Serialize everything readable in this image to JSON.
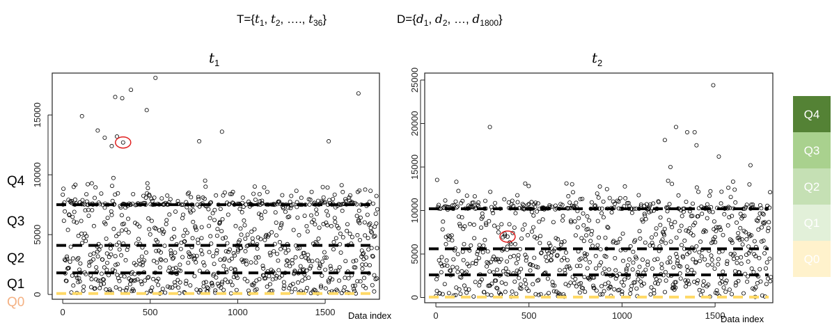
{
  "header": {
    "t_set_prefix": "T={",
    "t_set_items": [
      "t",
      "1",
      ", ",
      "t",
      "2",
      ", …., ",
      "t",
      "36",
      "}"
    ],
    "d_set_prefix": "D={",
    "d_set_items": [
      "d",
      "1",
      ", ",
      "d",
      "2",
      ", …, ",
      "d",
      "1800",
      "}"
    ]
  },
  "quartile_labels": [
    "Q4",
    "Q3",
    "Q2",
    "Q1",
    "Q0"
  ],
  "legend": {
    "items": [
      {
        "label": "Q4",
        "color": "#548235"
      },
      {
        "label": "Q3",
        "color": "#a9d18e"
      },
      {
        "label": "Q2",
        "color": "#c5e0b4"
      },
      {
        "label": "Q1",
        "color": "#e2f0d9"
      },
      {
        "label": "Q0",
        "color": "#fff2cc"
      }
    ]
  },
  "colors": {
    "q0_line": "#ffd966",
    "q0_label": "#f4b183",
    "highlight_circle": "#e02020",
    "points": "#000000"
  },
  "chart_data": [
    {
      "type": "scatter",
      "title_var": "t",
      "title_sub": "1",
      "xlabel": "Data index",
      "ylabel": "",
      "xlim": [
        -60,
        1810
      ],
      "ylim": [
        -400,
        18500
      ],
      "xticks": [
        0,
        500,
        1000,
        1500
      ],
      "yticks": [
        0,
        5000,
        10000,
        15000
      ],
      "n_points": 1800,
      "quantile_lines": [
        {
          "name": "Q0",
          "y": 80
        },
        {
          "name": "Q1",
          "y": 1800
        },
        {
          "name": "Q2",
          "y": 4100
        },
        {
          "name": "Q3",
          "y": 7500
        }
      ],
      "highlight": {
        "x": 345,
        "y": 12700
      },
      "notable_points": [
        [
          530,
          18100
        ],
        [
          390,
          17100
        ],
        [
          1690,
          16800
        ],
        [
          300,
          16500
        ],
        [
          340,
          16400
        ],
        [
          480,
          15400
        ],
        [
          110,
          14900
        ],
        [
          200,
          13700
        ],
        [
          310,
          13200
        ],
        [
          240,
          13100
        ],
        [
          1520,
          12800
        ],
        [
          910,
          13600
        ],
        [
          780,
          12800
        ],
        [
          280,
          12400
        ]
      ]
    },
    {
      "type": "scatter",
      "title_var": "t",
      "title_sub": "2",
      "xlabel": "Data index",
      "ylabel": "",
      "xlim": [
        -60,
        1810
      ],
      "ylim": [
        -600,
        25800
      ],
      "xticks": [
        0,
        500,
        1000,
        1500
      ],
      "yticks": [
        0,
        5000,
        10000,
        15000,
        20000,
        25000
      ],
      "n_points": 1800,
      "quantile_lines": [
        {
          "name": "Q0",
          "y": 50
        },
        {
          "name": "Q1",
          "y": 2600
        },
        {
          "name": "Q2",
          "y": 5600
        },
        {
          "name": "Q3",
          "y": 10200
        }
      ],
      "highlight": {
        "x": 385,
        "y": 7000
      },
      "notable_points": [
        [
          1490,
          24400
        ],
        [
          290,
          19600
        ],
        [
          1290,
          19600
        ],
        [
          1350,
          19000
        ],
        [
          1390,
          19000
        ],
        [
          1230,
          18100
        ],
        [
          1520,
          16200
        ],
        [
          1690,
          15200
        ],
        [
          1260,
          15000
        ],
        [
          1400,
          17500
        ],
        [
          480,
          13100
        ],
        [
          110,
          13300
        ]
      ]
    }
  ]
}
